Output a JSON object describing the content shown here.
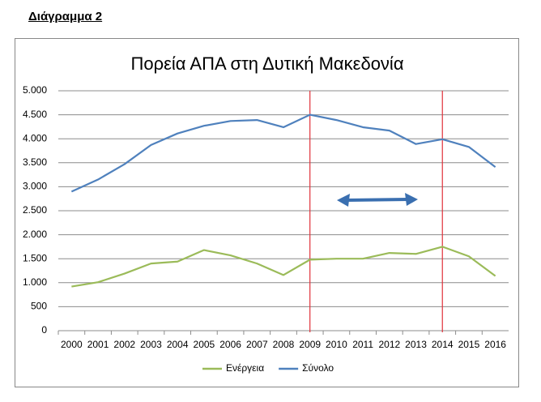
{
  "heading": "Διάγραμμα 2",
  "chart_data": {
    "type": "line",
    "title": "Πορεία ΑΠΑ στη Δυτική Μακεδονία",
    "categories": [
      "2000",
      "2001",
      "2002",
      "2003",
      "2004",
      "2005",
      "2006",
      "2007",
      "2008",
      "2009",
      "2010",
      "2011",
      "2012",
      "2013",
      "2014",
      "2015",
      "2016"
    ],
    "series": [
      {
        "name": "Ενέργεια",
        "color": "#9bbb59",
        "values": [
          920,
          1010,
          1190,
          1400,
          1440,
          1680,
          1570,
          1400,
          1160,
          1480,
          1500,
          1500,
          1620,
          1600,
          1750,
          1550,
          1140
        ]
      },
      {
        "name": "Σύνολο",
        "color": "#4f81bd",
        "values": [
          2900,
          3150,
          3470,
          3870,
          4110,
          4270,
          4370,
          4390,
          4240,
          4500,
          4390,
          4240,
          4170,
          3890,
          3990,
          3830,
          3410
        ]
      }
    ],
    "ylim": [
      0,
      5000
    ],
    "yticks": [
      0,
      500,
      {
        "value": 1000,
        "label": "1.000"
      },
      {
        "value": 1500,
        "label": "1.500"
      },
      {
        "value": 2000,
        "label": "2.000"
      },
      {
        "value": 2500,
        "label": "2.500"
      },
      {
        "value": 3000,
        "label": "3.000"
      },
      {
        "value": 3500,
        "label": "3.500"
      },
      {
        "value": 4000,
        "label": "4.000"
      },
      {
        "value": 4500,
        "label": "4.500"
      },
      {
        "value": 5000,
        "label": "5.000"
      }
    ],
    "grid": true,
    "legend": "bottom"
  }
}
